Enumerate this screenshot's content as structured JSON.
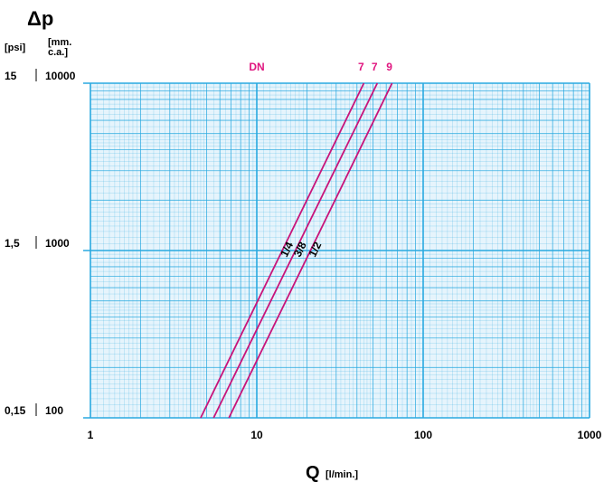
{
  "chart_data": {
    "type": "line",
    "x_scale": "log",
    "y_scale": "log",
    "xlim": [
      1,
      1000
    ],
    "ylim": [
      100,
      10000
    ],
    "x_ticks": [
      {
        "value": 1,
        "label": "1"
      },
      {
        "value": 10,
        "label": "10"
      },
      {
        "value": 100,
        "label": "100"
      },
      {
        "value": 1000,
        "label": "1000"
      }
    ],
    "y_ticks": [
      {
        "value": 10000,
        "psi_label": "15",
        "mm_label": "10000"
      },
      {
        "value": 1000,
        "psi_label": "1,5",
        "mm_label": "1000"
      },
      {
        "value": 100,
        "psi_label": "0,15",
        "mm_label": "100"
      }
    ],
    "y_title": "Δp",
    "y_unit_psi": "[psi]",
    "y_unit_mm_line1": "[mm.",
    "y_unit_mm_line2": "c.a.]",
    "x_title": "Q",
    "x_unit": "[l/min.]",
    "dn_label": "DN",
    "grid": true,
    "colors": {
      "grid": "#29a9e0",
      "grid_fill": "#e6f4fc",
      "series": "#c8147a",
      "top_labels": "#e0157f",
      "text": "#000000"
    },
    "series": [
      {
        "name": "1/4",
        "dn": "7",
        "x": [
          4.6,
          44.0
        ],
        "y": [
          100,
          10000
        ]
      },
      {
        "name": "3/8",
        "dn": "7",
        "x": [
          5.5,
          53.0
        ],
        "y": [
          100,
          10000
        ]
      },
      {
        "name": "1/2",
        "dn": "9",
        "x": [
          6.8,
          65.0
        ],
        "y": [
          100,
          10000
        ]
      }
    ]
  }
}
